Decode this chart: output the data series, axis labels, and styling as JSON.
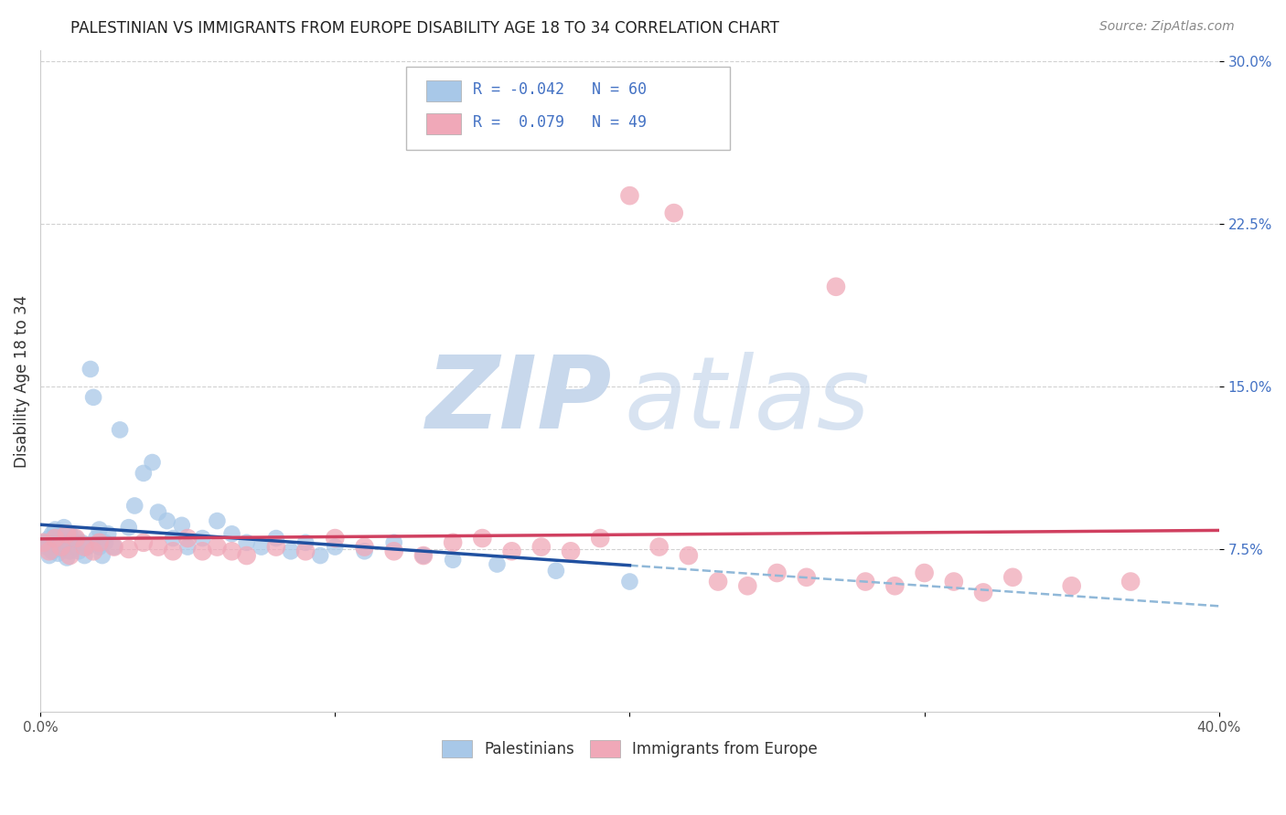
{
  "title": "PALESTINIAN VS IMMIGRANTS FROM EUROPE DISABILITY AGE 18 TO 34 CORRELATION CHART",
  "source": "Source: ZipAtlas.com",
  "ylabel": "Disability Age 18 to 34",
  "xlim": [
    0.0,
    0.4
  ],
  "ylim": [
    0.0,
    0.305
  ],
  "xticks": [
    0.0,
    0.1,
    0.2,
    0.3,
    0.4
  ],
  "xtick_labels": [
    "0.0%",
    "",
    "",
    "",
    "40.0%"
  ],
  "yticks": [
    0.075,
    0.15,
    0.225,
    0.3
  ],
  "ytick_labels": [
    "7.5%",
    "15.0%",
    "22.5%",
    "30.0%"
  ],
  "blue_color": "#A8C8E8",
  "pink_color": "#F0A8B8",
  "trend_blue_solid": "#2050A0",
  "trend_pink_solid": "#D04060",
  "trend_blue_dash": "#90B8D8",
  "grid_color": "#CCCCCC",
  "blue_R": -0.042,
  "blue_N": 60,
  "pink_R": 0.079,
  "pink_N": 49,
  "blue_x": [
    0.001,
    0.002,
    0.003,
    0.003,
    0.004,
    0.004,
    0.005,
    0.005,
    0.006,
    0.006,
    0.007,
    0.007,
    0.008,
    0.008,
    0.009,
    0.009,
    0.01,
    0.01,
    0.011,
    0.012,
    0.013,
    0.014,
    0.015,
    0.016,
    0.017,
    0.018,
    0.019,
    0.02,
    0.02,
    0.021,
    0.022,
    0.023,
    0.025,
    0.027,
    0.03,
    0.032,
    0.035,
    0.038,
    0.04,
    0.043,
    0.045,
    0.048,
    0.05,
    0.055,
    0.06,
    0.065,
    0.07,
    0.075,
    0.08,
    0.085,
    0.09,
    0.095,
    0.1,
    0.11,
    0.12,
    0.13,
    0.14,
    0.155,
    0.175,
    0.2
  ],
  "blue_y": [
    0.078,
    0.076,
    0.072,
    0.08,
    0.074,
    0.082,
    0.076,
    0.084,
    0.073,
    0.079,
    0.075,
    0.083,
    0.077,
    0.085,
    0.071,
    0.079,
    0.074,
    0.082,
    0.076,
    0.08,
    0.074,
    0.078,
    0.072,
    0.076,
    0.158,
    0.145,
    0.08,
    0.076,
    0.084,
    0.072,
    0.078,
    0.082,
    0.076,
    0.13,
    0.085,
    0.095,
    0.11,
    0.115,
    0.092,
    0.088,
    0.08,
    0.086,
    0.076,
    0.08,
    0.088,
    0.082,
    0.078,
    0.076,
    0.08,
    0.074,
    0.078,
    0.072,
    0.076,
    0.074,
    0.078,
    0.072,
    0.07,
    0.068,
    0.065,
    0.06
  ],
  "pink_x": [
    0.001,
    0.003,
    0.005,
    0.007,
    0.009,
    0.01,
    0.012,
    0.015,
    0.018,
    0.02,
    0.025,
    0.03,
    0.035,
    0.04,
    0.045,
    0.05,
    0.055,
    0.06,
    0.065,
    0.07,
    0.08,
    0.09,
    0.1,
    0.11,
    0.12,
    0.13,
    0.14,
    0.15,
    0.16,
    0.17,
    0.18,
    0.19,
    0.2,
    0.21,
    0.215,
    0.22,
    0.23,
    0.24,
    0.25,
    0.26,
    0.27,
    0.28,
    0.29,
    0.3,
    0.31,
    0.32,
    0.33,
    0.35,
    0.37
  ],
  "pink_y": [
    0.078,
    0.074,
    0.08,
    0.076,
    0.082,
    0.072,
    0.08,
    0.076,
    0.074,
    0.078,
    0.076,
    0.075,
    0.078,
    0.076,
    0.074,
    0.08,
    0.074,
    0.076,
    0.074,
    0.072,
    0.076,
    0.074,
    0.08,
    0.076,
    0.074,
    0.072,
    0.078,
    0.08,
    0.074,
    0.076,
    0.074,
    0.08,
    0.238,
    0.076,
    0.23,
    0.072,
    0.06,
    0.058,
    0.064,
    0.062,
    0.196,
    0.06,
    0.058,
    0.064,
    0.06,
    0.055,
    0.062,
    0.058,
    0.06
  ],
  "watermark_zip_color": "#C8D8EC",
  "watermark_atlas_color": "#C8D8EC"
}
